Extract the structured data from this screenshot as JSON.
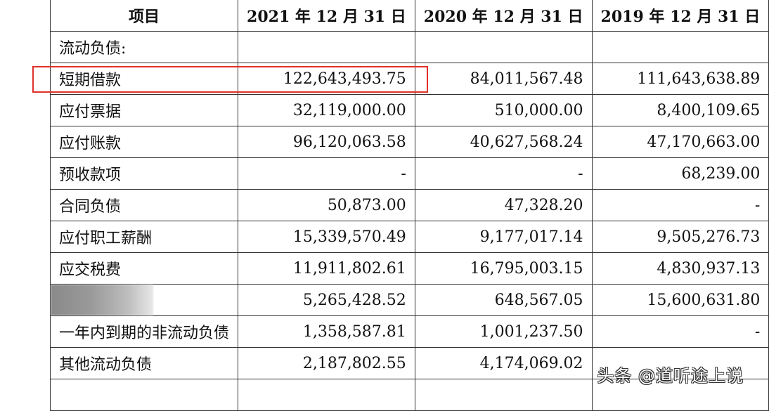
{
  "header": {
    "item": "项目",
    "col1": "2021 年 12 月 31 日",
    "col2": "2020 年 12 月 31 日",
    "col3": "2019 年 12 月 31 日"
  },
  "rows": [
    {
      "label": "流动负债:",
      "v1": "",
      "v2": "",
      "v3": ""
    },
    {
      "label": "短期借款",
      "v1": "122,643,493.75",
      "v2": "84,011,567.48",
      "v3": "111,643,638.89"
    },
    {
      "label": "应付票据",
      "v1": "32,119,000.00",
      "v2": "510,000.00",
      "v3": "8,400,109.65"
    },
    {
      "label": "应付账款",
      "v1": "96,120,063.58",
      "v2": "40,627,568.24",
      "v3": "47,170,663.00"
    },
    {
      "label": "预收款项",
      "v1": "-",
      "v2": "-",
      "v3": "68,239.00"
    },
    {
      "label": "合同负债",
      "v1": "50,873.00",
      "v2": "47,328.20",
      "v3": "-"
    },
    {
      "label": "应付职工薪酬",
      "v1": "15,339,570.49",
      "v2": "9,177,017.14",
      "v3": "9,505,276.73"
    },
    {
      "label": "应交税费",
      "v1": "11,911,802.61",
      "v2": "16,795,003.15",
      "v3": "4,830,937.13"
    },
    {
      "label": "",
      "v1": "5,265,428.52",
      "v2": "648,567.05",
      "v3": "15,600,631.80"
    },
    {
      "label": "一年内到期的非流动负债",
      "v1": "1,358,587.81",
      "v2": "1,001,237.50",
      "v3": "-"
    },
    {
      "label": "其他流动负债",
      "v1": "2,187,802.55",
      "v2": "4,174,069.02",
      "v3": ""
    }
  ],
  "watermark": "头条 @道听途上说",
  "colors": {
    "highlight": "#e0302a",
    "border": "#333333"
  }
}
